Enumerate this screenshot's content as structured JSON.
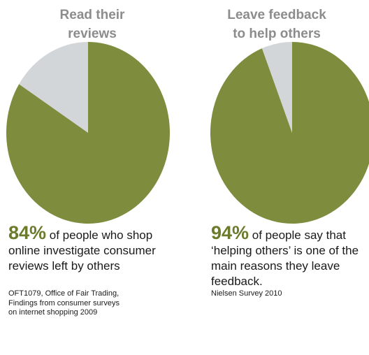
{
  "colors": {
    "main": "#7e8c3e",
    "rest": "#d3d6d9",
    "accent": "#6b7a2b",
    "title": "#8c8c8c"
  },
  "chart_data": [
    {
      "type": "pie",
      "title_lines": [
        "Read their",
        "reviews"
      ],
      "categories": [
        "",
        ""
      ],
      "values": [
        84,
        16
      ],
      "percent_label": "84%",
      "statement": " of people who shop online investigate consumer reviews left by others",
      "source": "OFT1079, Office of Fair Trading, Findings from consumer surveys on internet shopping 2009"
    },
    {
      "type": "pie",
      "title_lines": [
        "Leave feedback",
        "to help others"
      ],
      "categories": [
        "",
        ""
      ],
      "values": [
        94,
        6
      ],
      "percent_label": "94%",
      "statement": " of people say that ‘helping others’ is one of the main reasons they leave feedback.",
      "source": "Nielsen Survey 2010"
    }
  ]
}
